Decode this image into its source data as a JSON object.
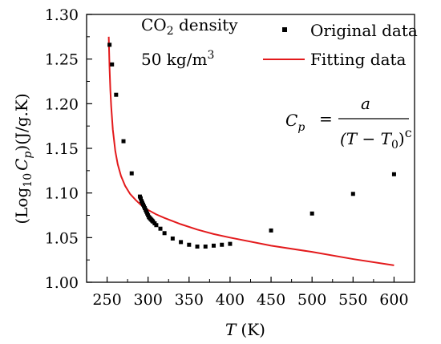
{
  "chart_data": {
    "type": "scatter",
    "xlabel": "T (K)",
    "ylabel": "(Log10 Cp )(J/g.K)",
    "xlabel_italic": "T",
    "xlabel_unit": "(K)",
    "ylabel_parts": {
      "prefix": "(Log",
      "sub": "10",
      "var": "C",
      "var_sub": "p",
      "suffix": ")(J/g.K)"
    },
    "xlim": [
      225,
      625
    ],
    "ylim": [
      1.0,
      1.3
    ],
    "x_ticks": [
      250,
      300,
      350,
      400,
      450,
      500,
      550,
      600
    ],
    "y_ticks": [
      "1.00",
      "1.05",
      "1.10",
      "1.15",
      "1.20",
      "1.25",
      "1.30"
    ],
    "grid": false,
    "legend_position": "top-right",
    "annotations": {
      "line1": "CO2 density",
      "line1_parts": {
        "pre": "CO",
        "sub": "2",
        "post": " density"
      },
      "line2": "50 kg/m3",
      "line2_parts": {
        "pre": "50  kg/m",
        "sup": "3"
      },
      "formula": {
        "lhs": "C",
        "lhs_sub": "p",
        "eq": "=",
        "numerator": "a",
        "den_pre": "(T − T",
        "den_sub": "0",
        "den_post": ")",
        "den_sup": "c"
      }
    },
    "series": [
      {
        "name": "Original data",
        "kind": "scatter",
        "color": "#000000",
        "x": [
          253,
          256,
          261,
          270,
          280,
          290,
          291,
          292,
          293,
          294,
          295,
          296,
          297,
          298,
          299,
          300,
          301,
          302,
          303,
          304,
          305,
          306,
          308,
          310,
          315,
          320,
          330,
          340,
          350,
          360,
          370,
          380,
          390,
          400,
          450,
          500,
          550,
          600
        ],
        "y": [
          1.266,
          1.244,
          1.21,
          1.158,
          1.122,
          1.096,
          1.094,
          1.091,
          1.089,
          1.087,
          1.085,
          1.083,
          1.081,
          1.079,
          1.077,
          1.075,
          1.073,
          1.072,
          1.071,
          1.07,
          1.069,
          1.068,
          1.066,
          1.064,
          1.06,
          1.055,
          1.049,
          1.045,
          1.042,
          1.04,
          1.04,
          1.041,
          1.042,
          1.043,
          1.058,
          1.077,
          1.099,
          1.121
        ]
      },
      {
        "name": "Fitting data",
        "kind": "line",
        "color": "#e31a1c",
        "x": [
          252,
          253,
          254,
          255,
          257,
          260,
          263,
          267,
          272,
          278,
          285,
          292,
          300,
          310,
          320,
          340,
          360,
          380,
          400,
          450,
          500,
          550,
          600
        ],
        "y": [
          1.275,
          1.24,
          1.215,
          1.197,
          1.171,
          1.147,
          1.132,
          1.119,
          1.108,
          1.099,
          1.092,
          1.086,
          1.081,
          1.076,
          1.072,
          1.065,
          1.059,
          1.054,
          1.05,
          1.041,
          1.034,
          1.026,
          1.019
        ]
      }
    ]
  }
}
